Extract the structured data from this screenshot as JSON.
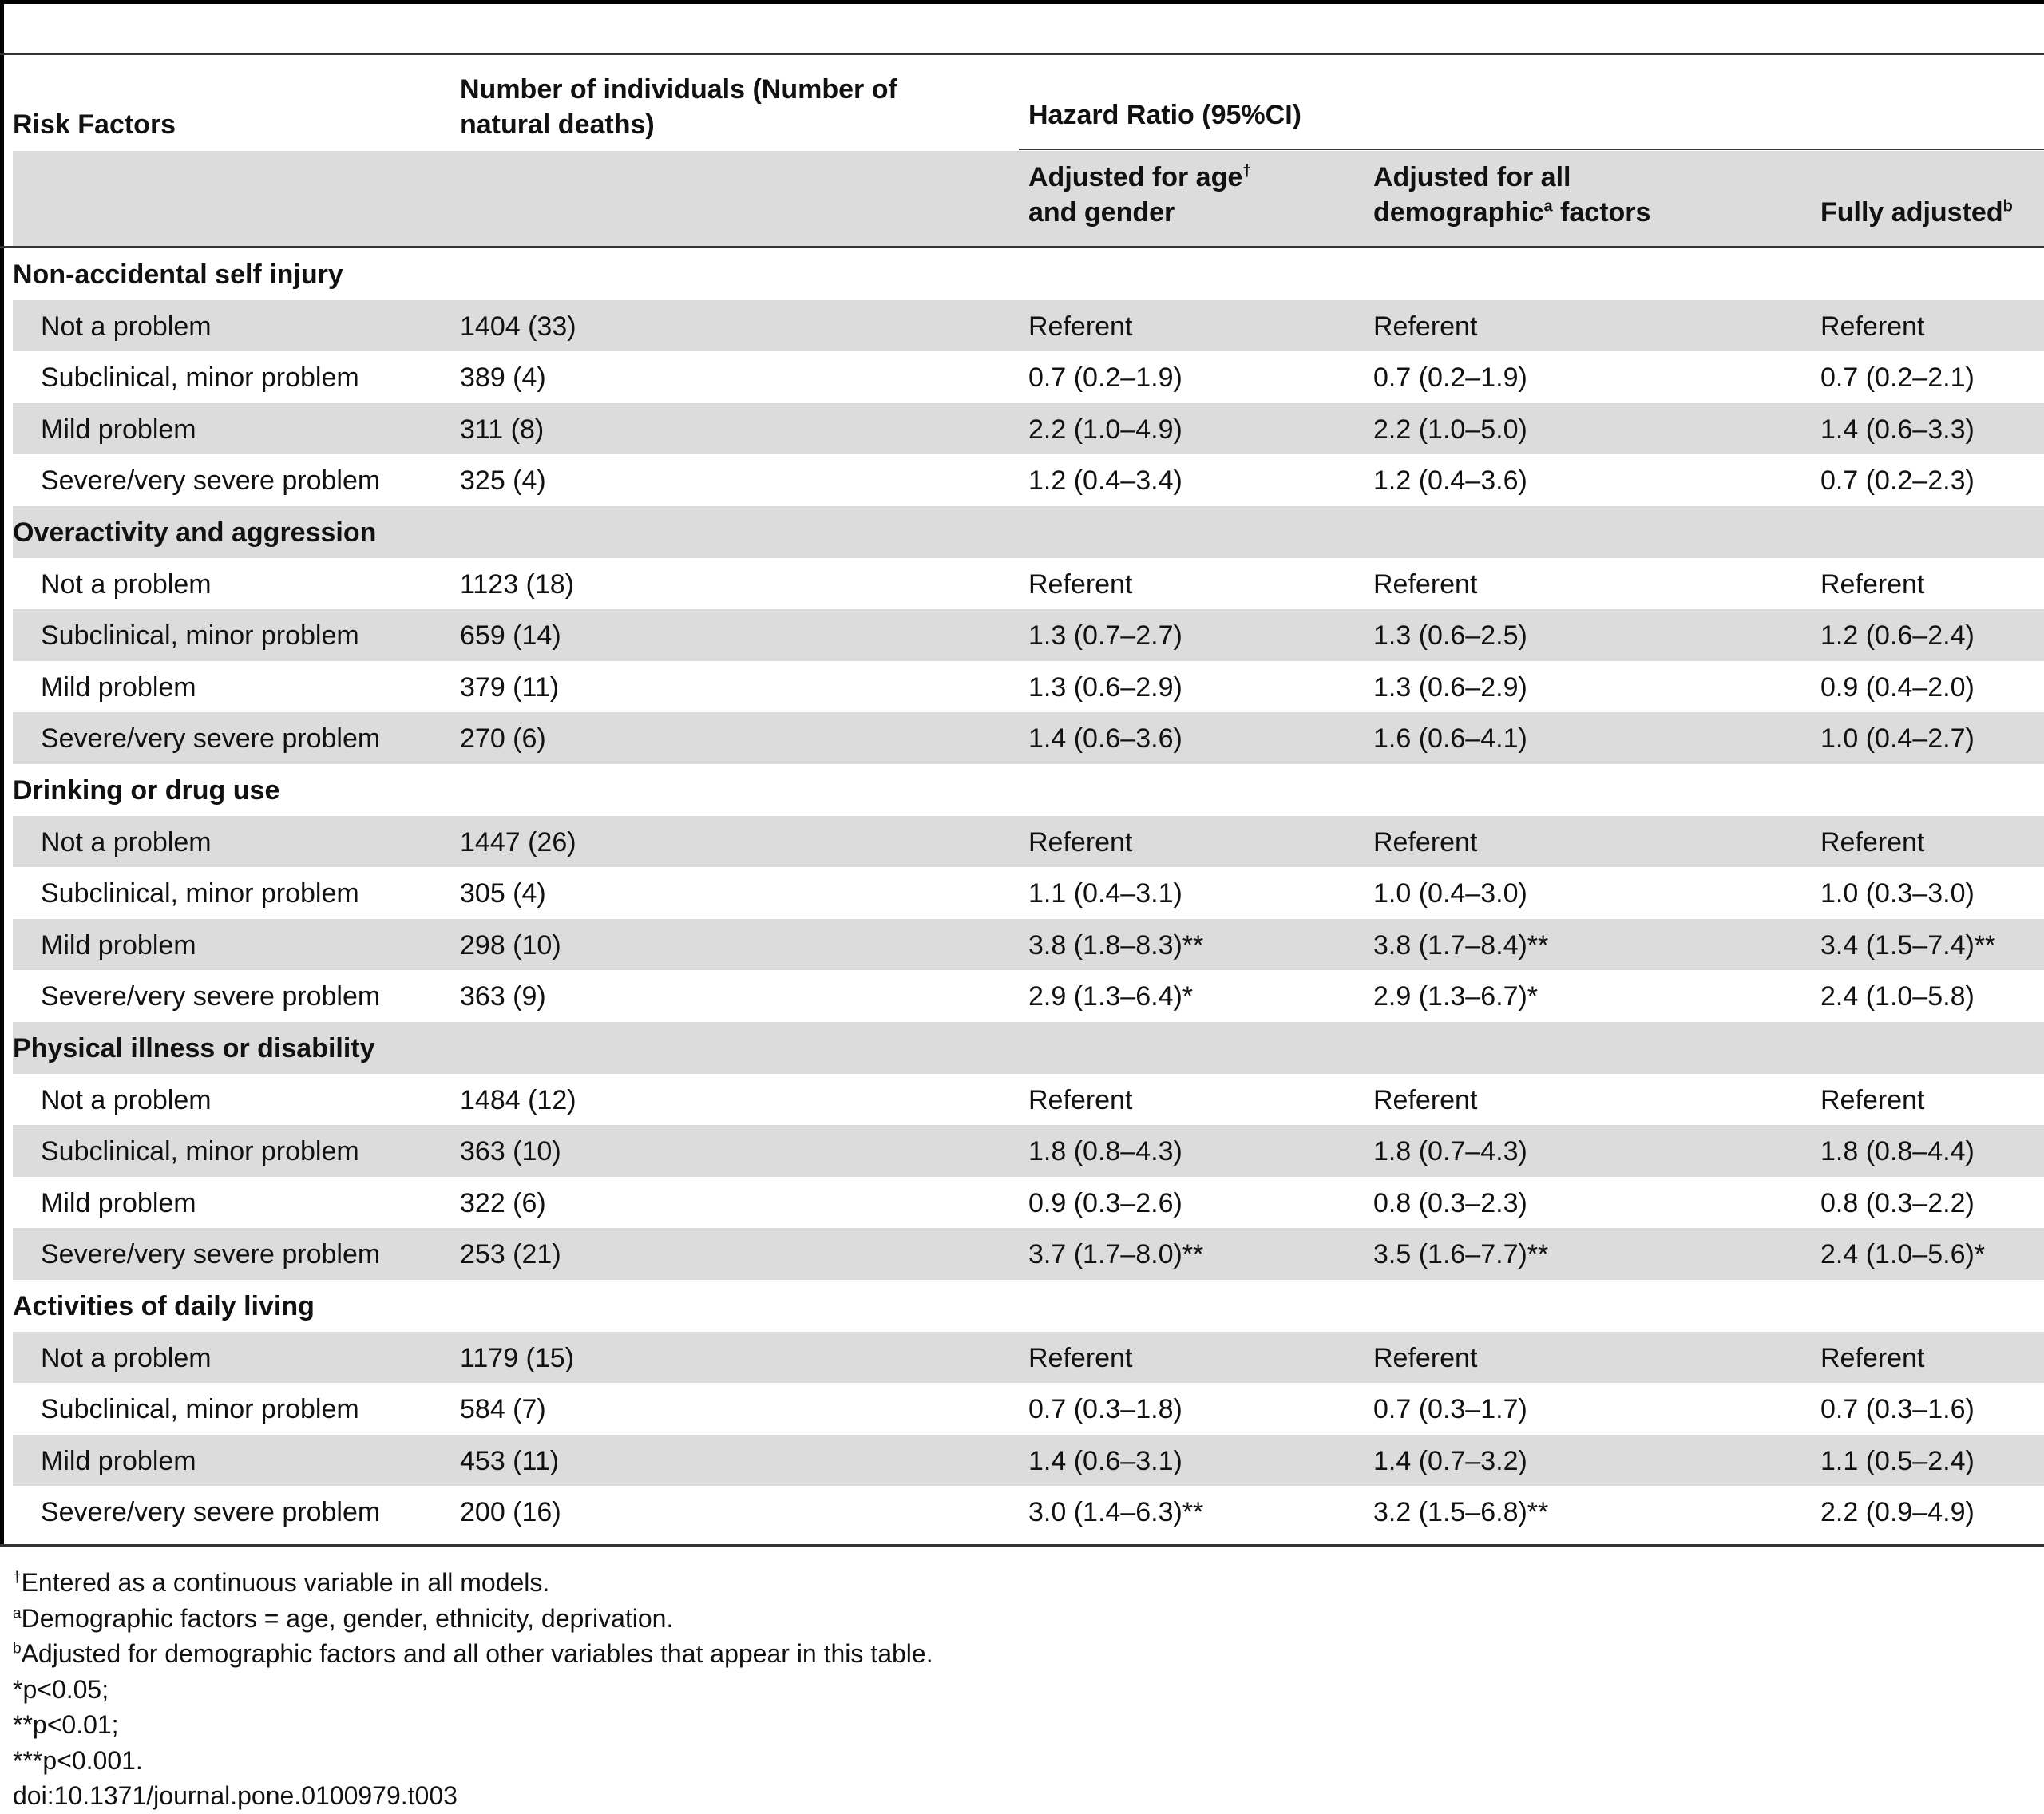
{
  "table": {
    "headers": {
      "risk_factors": "Risk Factors",
      "number_line1": "Number of individuals (Number of",
      "number_line2": "natural deaths)",
      "hazard_ratio": "Hazard Ratio (95%CI)",
      "col1_line1": "Adjusted for age",
      "col1_sup": "†",
      "col1_line2": "and gender",
      "col2_line1": "Adjusted for all",
      "col2_line2a": "demographic",
      "col2_sup": "a",
      "col2_line2b": " factors",
      "col3": "Fully adjusted",
      "col3_sup": "b"
    },
    "rows": [
      {
        "kind": "group",
        "label": "Non-accidental self injury",
        "n": "",
        "age_gender": "",
        "demographic": "",
        "full": ""
      },
      {
        "kind": "item",
        "label": "Not a problem",
        "n": "1404 (33)",
        "age_gender": "Referent",
        "demographic": "Referent",
        "full": "Referent"
      },
      {
        "kind": "item",
        "label": "Subclinical, minor problem",
        "n": "389 (4)",
        "age_gender": "0.7 (0.2–1.9)",
        "demographic": "0.7 (0.2–1.9)",
        "full": "0.7 (0.2–2.1)"
      },
      {
        "kind": "item",
        "label": "Mild problem",
        "n": "311 (8)",
        "age_gender": "2.2 (1.0–4.9)",
        "demographic": "2.2 (1.0–5.0)",
        "full": "1.4 (0.6–3.3)"
      },
      {
        "kind": "item",
        "label": "Severe/very severe problem",
        "n": "325 (4)",
        "age_gender": "1.2 (0.4–3.4)",
        "demographic": "1.2 (0.4–3.6)",
        "full": "0.7 (0.2–2.3)"
      },
      {
        "kind": "group",
        "label": "Overactivity and aggression",
        "n": "",
        "age_gender": "",
        "demographic": "",
        "full": ""
      },
      {
        "kind": "item",
        "label": "Not a problem",
        "n": "1123 (18)",
        "age_gender": "Referent",
        "demographic": "Referent",
        "full": "Referent"
      },
      {
        "kind": "item",
        "label": "Subclinical, minor problem",
        "n": "659 (14)",
        "age_gender": "1.3 (0.7–2.7)",
        "demographic": "1.3 (0.6–2.5)",
        "full": "1.2 (0.6–2.4)"
      },
      {
        "kind": "item",
        "label": "Mild problem",
        "n": "379 (11)",
        "age_gender": "1.3 (0.6–2.9)",
        "demographic": "1.3 (0.6–2.9)",
        "full": "0.9 (0.4–2.0)"
      },
      {
        "kind": "item",
        "label": "Severe/very severe problem",
        "n": "270 (6)",
        "age_gender": "1.4 (0.6–3.6)",
        "demographic": "1.6 (0.6–4.1)",
        "full": "1.0 (0.4–2.7)"
      },
      {
        "kind": "group",
        "label": "Drinking or drug use",
        "n": "",
        "age_gender": "",
        "demographic": "",
        "full": ""
      },
      {
        "kind": "item",
        "label": "Not a problem",
        "n": "1447 (26)",
        "age_gender": "Referent",
        "demographic": "Referent",
        "full": "Referent"
      },
      {
        "kind": "item",
        "label": "Subclinical, minor problem",
        "n": "305 (4)",
        "age_gender": "1.1 (0.4–3.1)",
        "demographic": "1.0 (0.4–3.0)",
        "full": "1.0 (0.3–3.0)"
      },
      {
        "kind": "item",
        "label": "Mild problem",
        "n": "298 (10)",
        "age_gender": "3.8 (1.8–8.3)**",
        "demographic": "3.8 (1.7–8.4)**",
        "full": "3.4 (1.5–7.4)**"
      },
      {
        "kind": "item",
        "label": "Severe/very severe problem",
        "n": "363 (9)",
        "age_gender": "2.9 (1.3–6.4)*",
        "demographic": "2.9 (1.3–6.7)*",
        "full": "2.4 (1.0–5.8)"
      },
      {
        "kind": "group",
        "label": "Physical illness or disability",
        "n": "",
        "age_gender": "",
        "demographic": "",
        "full": ""
      },
      {
        "kind": "item",
        "label": "Not a problem",
        "n": "1484 (12)",
        "age_gender": "Referent",
        "demographic": "Referent",
        "full": "Referent"
      },
      {
        "kind": "item",
        "label": "Subclinical, minor problem",
        "n": "363 (10)",
        "age_gender": "1.8 (0.8–4.3)",
        "demographic": "1.8 (0.7–4.3)",
        "full": "1.8 (0.8–4.4)"
      },
      {
        "kind": "item",
        "label": "Mild problem",
        "n": "322 (6)",
        "age_gender": "0.9 (0.3–2.6)",
        "demographic": "0.8 (0.3–2.3)",
        "full": "0.8 (0.3–2.2)"
      },
      {
        "kind": "item",
        "label": "Severe/very severe problem",
        "n": "253 (21)",
        "age_gender": "3.7 (1.7–8.0)**",
        "demographic": "3.5 (1.6–7.7)**",
        "full": "2.4 (1.0–5.6)*"
      },
      {
        "kind": "group",
        "label": "Activities of daily living",
        "n": "",
        "age_gender": "",
        "demographic": "",
        "full": ""
      },
      {
        "kind": "item",
        "label": "Not a problem",
        "n": "1179 (15)",
        "age_gender": "Referent",
        "demographic": "Referent",
        "full": "Referent"
      },
      {
        "kind": "item",
        "label": "Subclinical, minor problem",
        "n": "584 (7)",
        "age_gender": "0.7 (0.3–1.8)",
        "demographic": "0.7 (0.3–1.7)",
        "full": "0.7 (0.3–1.6)"
      },
      {
        "kind": "item",
        "label": "Mild problem",
        "n": "453 (11)",
        "age_gender": "1.4 (0.6–3.1)",
        "demographic": "1.4 (0.7–3.2)",
        "full": "1.1 (0.5–2.4)"
      },
      {
        "kind": "item",
        "label": "Severe/very severe problem",
        "n": "200 (16)",
        "age_gender": "3.0 (1.4–6.3)**",
        "demographic": "3.2 (1.5–6.8)**",
        "full": "2.2 (0.9–4.9)"
      }
    ]
  },
  "footnotes": [
    {
      "mark": "†",
      "text": "Entered as a continuous variable in all models."
    },
    {
      "mark": "a",
      "text": "Demographic factors = age, gender, ethnicity, deprivation."
    },
    {
      "mark": "b",
      "text": "Adjusted for demographic factors and all other variables that appear in this table."
    },
    {
      "mark": "",
      "text": "*p<0.05;"
    },
    {
      "mark": "",
      "text": "**p<0.01;"
    },
    {
      "mark": "",
      "text": "***p<0.001."
    },
    {
      "mark": "",
      "text": "doi:10.1371/journal.pone.0100979.t003"
    }
  ],
  "colors": {
    "row_shade": "#dcdcdc",
    "rule": "#333333",
    "text": "#111111"
  }
}
